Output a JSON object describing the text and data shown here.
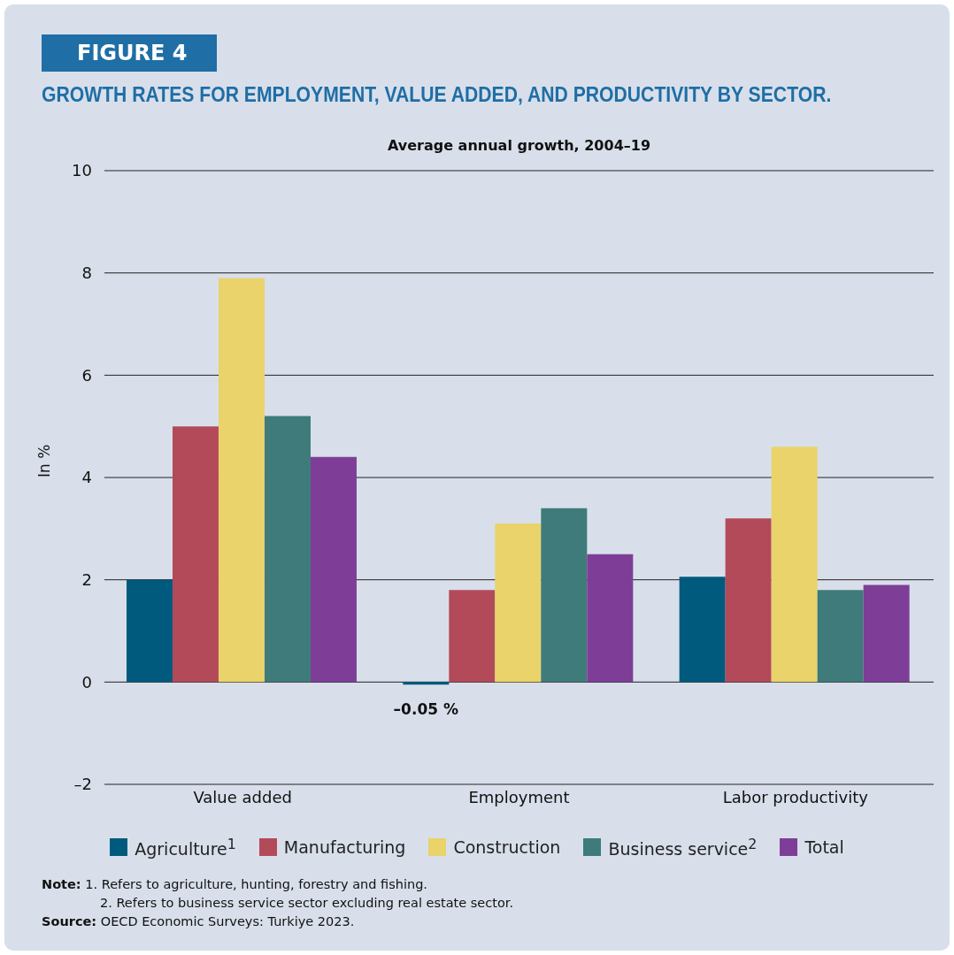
{
  "chart_data": {
    "type": "bar",
    "title": "GROWTH RATES FOR EMPLOYMENT, VALUE ADDED, AND PRODUCTIVITY BY SECTOR.",
    "subtitle": "Average annual growth, 2004–19",
    "ylabel": "In %",
    "categories": [
      "Value added",
      "Employment",
      "Labor productivity"
    ],
    "series": [
      {
        "name": "Agriculture$^{1}$",
        "color": "#005a7d",
        "values": [
          2.0,
          -0.05,
          2.06
        ],
        "value_labels": [
          null,
          "–0.05 %",
          null
        ]
      },
      {
        "name": "Manufacturing",
        "color": "#b34a5a",
        "values": [
          5.0,
          1.8,
          3.2
        ]
      },
      {
        "name": "Construction",
        "color": "#e9d36a",
        "values": [
          7.9,
          3.1,
          4.6
        ]
      },
      {
        "name": "Business service$^{2}$",
        "color": "#3e7b7a",
        "values": [
          5.2,
          3.4,
          1.8
        ]
      },
      {
        "name": "Total",
        "color": "#7e3e97",
        "values": [
          4.4,
          2.5,
          1.9
        ]
      }
    ],
    "ylim": [
      -2,
      10
    ],
    "yticks": [
      {
        "value": -2,
        "label": "–2"
      },
      0,
      2,
      4,
      6,
      8,
      10
    ],
    "grid": "y",
    "legend": "bottom",
    "annotations": [
      "FIGURE 4",
      "Note: 1. Refers to agriculture, hunting, forestry and fishing.",
      "2. Refers to business service sector excluding real estate sector.",
      "Source: OECD Economic Surveys: Turkiye 2023."
    ]
  }
}
